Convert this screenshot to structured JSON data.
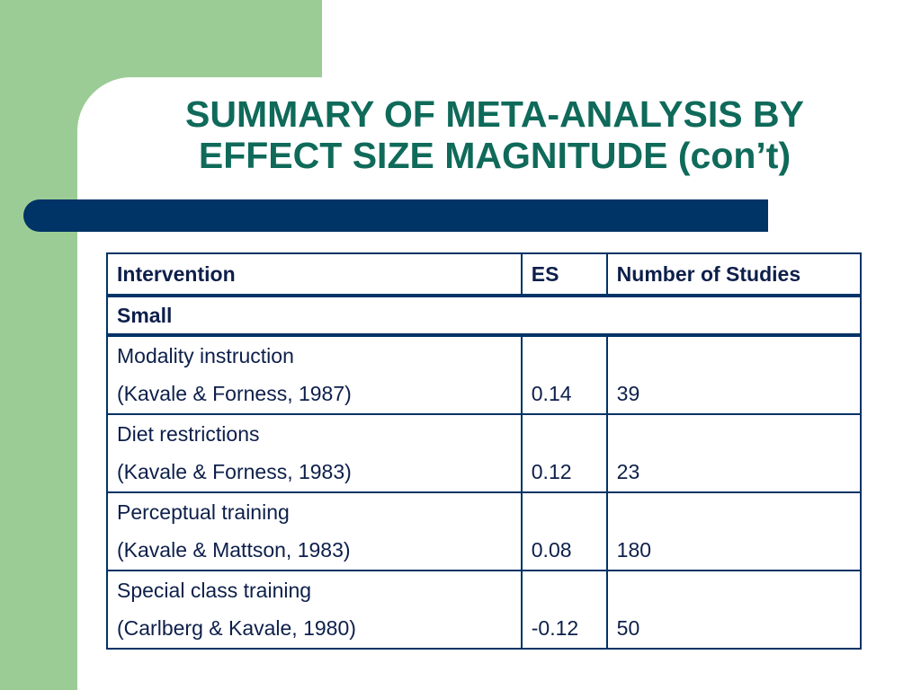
{
  "slide": {
    "title_lines": [
      "SUMMARY OF META-ANALYSIS BY",
      "EFFECT SIZE MAGNITUDE (con’t)"
    ],
    "colors": {
      "green_band": "#9ccc96",
      "title": "#0f6a5a",
      "bar": "#003366",
      "table_text": "#0d1f4a"
    }
  },
  "table": {
    "headers": {
      "intervention": "Intervention",
      "es": "ES",
      "studies": "Number of Studies"
    },
    "category": "Small",
    "rows": [
      {
        "intervention": "Modality instruction",
        "citation": "(Kavale & Forness, 1987)",
        "es": "0.14",
        "studies": "39"
      },
      {
        "intervention": "Diet restrictions",
        "citation": "(Kavale & Forness, 1983)",
        "es": "0.12",
        "studies": "23"
      },
      {
        "intervention": "Perceptual training",
        "citation": "(Kavale & Mattson, 1983)",
        "es": "0.08",
        "studies": "180"
      },
      {
        "intervention": "Special class training",
        "citation": "(Carlberg & Kavale, 1980)",
        "es": "-0.12",
        "studies": "50"
      }
    ]
  }
}
